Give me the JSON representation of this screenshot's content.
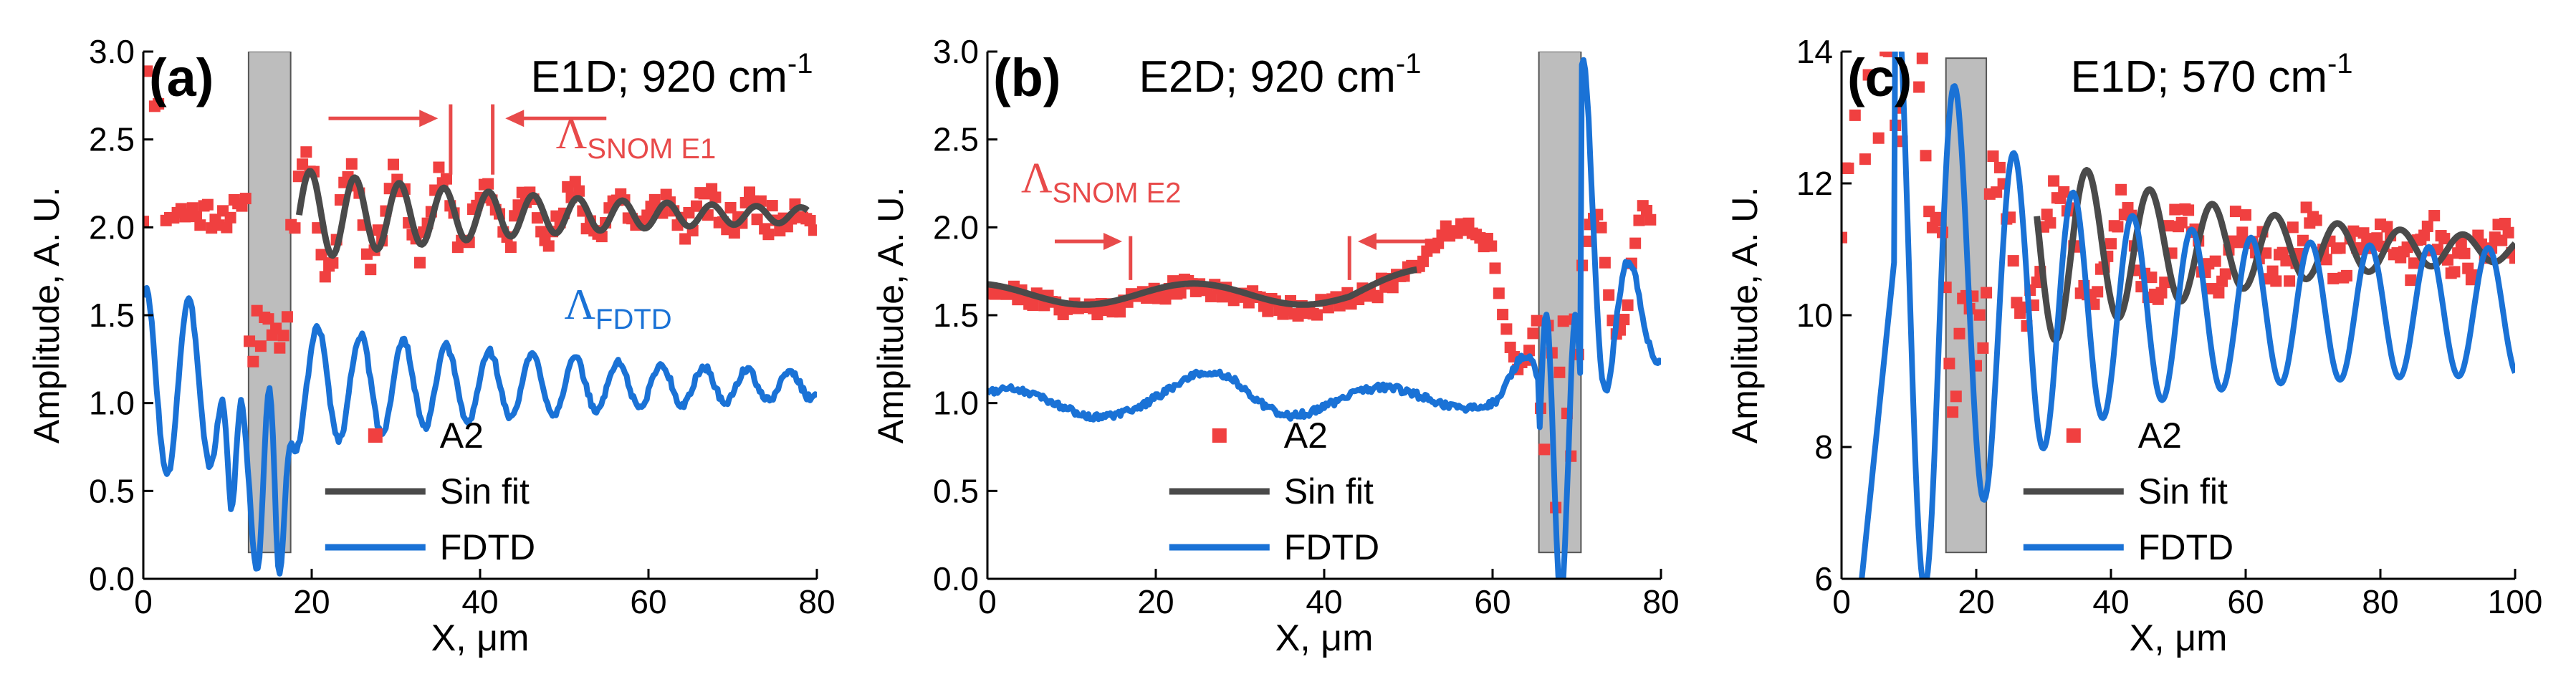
{
  "colors": {
    "exp": "#f04040",
    "fit": "#4a4a4a",
    "fdtd": "#1a72d6",
    "bar": "#bdbdbd",
    "axis": "#000000",
    "annot_red": "#e84a4a",
    "annot_blue": "#1a72d6"
  },
  "chart_data": [
    {
      "type": "line",
      "panel_label": "(a)",
      "title": "E1D; 920 cm",
      "title_sup": "-1",
      "xlabel": "X, μm",
      "ylabel": "Amplitude, A. U.",
      "xlim": [
        0,
        80
      ],
      "ylim": [
        0,
        3
      ],
      "xticks": [
        0,
        20,
        40,
        60,
        80
      ],
      "yticks": [
        0.0,
        0.5,
        1.0,
        1.5,
        2.0,
        2.5,
        3.0
      ],
      "ytick_labels": [
        "0.0",
        "0.5",
        "1.0",
        "1.5",
        "2.0",
        "2.5",
        "3.0"
      ],
      "barrier": {
        "x0": 12.5,
        "x1": 17.5,
        "y0": 0.15,
        "y1": 3.0
      },
      "legend": {
        "placement": "bottom-center",
        "entries": [
          "A2",
          "Sin fit",
          "FDTD"
        ]
      },
      "annotations": [
        {
          "text": "Λ",
          "sub": "SNOM E1",
          "color": "red",
          "x": 49,
          "y": 2.45
        },
        {
          "text": "Λ",
          "sub": "FDTD",
          "color": "blue",
          "x": 50,
          "y": 1.48
        }
      ],
      "markers": [
        {
          "x": 36.5,
          "y0": 2.3,
          "y1": 2.7
        },
        {
          "x": 41.5,
          "y0": 2.3,
          "y1": 2.7
        }
      ],
      "arrows": [
        {
          "x0": 22,
          "x1": 35,
          "y": 2.62
        },
        {
          "x0": 55,
          "x1": 43,
          "y": 2.62
        }
      ],
      "series": [
        {
          "name": "A2",
          "kind": "scatter",
          "model": {
            "type": "decay",
            "start": 0,
            "end": 80,
            "base": 2.08,
            "amp": 0.35,
            "decay": 0.035,
            "period": 5.3,
            "phase": 0,
            "x_from": 18,
            "noise": 0.09,
            "step": 0.45,
            "seed": 11,
            "extra": [
              [
                0.2,
                2.6,
                3.0
              ],
              [
                12.5,
                17.5,
                1.4
              ]
            ]
          }
        },
        {
          "name": "Sin fit",
          "kind": "line",
          "model": {
            "type": "decay",
            "start": 18.5,
            "end": 79,
            "base": 2.07,
            "amp": 0.26,
            "decay": 0.03,
            "period": 5.3,
            "phase": 0,
            "x_from": 18.5,
            "noise": 0,
            "step": 0.2,
            "seed": 1
          }
        },
        {
          "name": "FDTD",
          "kind": "line",
          "model": {
            "type": "decay",
            "start": 0,
            "end": 80,
            "base": 1.1,
            "amp": 0.55,
            "decay": 0.025,
            "period": 5.1,
            "phase": 1.2,
            "x_from": 0,
            "noise": 0.02,
            "step": 0.2,
            "seed": 3,
            "dips": [
              [
                10.5,
                0.4
              ],
              [
                13.5,
                0.05
              ],
              [
                16.2,
                0.02
              ]
            ]
          }
        }
      ]
    },
    {
      "type": "line",
      "panel_label": "(b)",
      "title": "E2D; 920 cm",
      "title_sup": "-1",
      "xlabel": "X, μm",
      "ylabel": "Amplitude, A. U.",
      "xlim": [
        0,
        80
      ],
      "ylim": [
        0,
        3
      ],
      "xticks": [
        0,
        20,
        40,
        60,
        80
      ],
      "yticks": [
        0.0,
        0.5,
        1.0,
        1.5,
        2.0,
        2.5,
        3.0
      ],
      "ytick_labels": [
        "0.0",
        "0.5",
        "1.0",
        "1.5",
        "2.0",
        "2.5",
        "3.0"
      ],
      "barrier": {
        "x0": 65.5,
        "x1": 70.5,
        "y0": 0.15,
        "y1": 3.0
      },
      "legend": {
        "placement": "bottom-center",
        "entries": [
          "A2",
          "Sin fit",
          "FDTD"
        ]
      },
      "annotations": [
        {
          "text": "Λ",
          "sub": "SNOM E2",
          "color": "red",
          "x": 4,
          "y": 2.2
        }
      ],
      "markers": [
        {
          "x": 17,
          "y0": 1.7,
          "y1": 1.95
        },
        {
          "x": 43,
          "y0": 1.7,
          "y1": 1.95
        }
      ],
      "arrows": [
        {
          "x0": 8,
          "x1": 16,
          "y": 1.92
        },
        {
          "x0": 52,
          "x1": 44,
          "y": 1.92
        }
      ],
      "series": [
        {
          "name": "A2",
          "kind": "scatter",
          "model": {
            "type": "b_exp",
            "start": 0,
            "end": 79,
            "noise": 0.05,
            "step": 0.45,
            "seed": 21
          }
        },
        {
          "name": "Sin fit",
          "kind": "line",
          "model": {
            "type": "b_fit",
            "start": 0,
            "end": 51,
            "step": 0.2
          }
        },
        {
          "name": "FDTD",
          "kind": "line",
          "model": {
            "type": "b_fdtd",
            "start": 0,
            "end": 80,
            "noise": 0.02,
            "step": 0.2,
            "seed": 4
          }
        }
      ]
    },
    {
      "type": "line",
      "panel_label": "(c)",
      "title": "E1D; 570 cm",
      "title_sup": "-1",
      "xlabel": "X, μm",
      "ylabel": "Amplitude, A. U.",
      "xlim": [
        0,
        100
      ],
      "ylim": [
        6,
        14
      ],
      "xticks": [
        0,
        20,
        40,
        60,
        80,
        100
      ],
      "yticks": [
        6,
        8,
        10,
        12,
        14
      ],
      "ytick_labels": [
        "6",
        "8",
        "10",
        "12",
        "14"
      ],
      "barrier": {
        "x0": 15.5,
        "x1": 21.5,
        "y0": 6.4,
        "y1": 13.9
      },
      "legend": {
        "placement": "bottom-center",
        "entries": [
          "A2",
          "Sin fit",
          "FDTD"
        ]
      },
      "annotations": [],
      "markers": [],
      "arrows": [],
      "series": [
        {
          "name": "A2",
          "kind": "scatter",
          "model": {
            "type": "decay",
            "start": 0,
            "end": 100,
            "base": 11.0,
            "amp": 1.2,
            "decay": 0.025,
            "period": 9.3,
            "phase": 0.3,
            "x_from": 21,
            "noise": 0.35,
            "step": 0.5,
            "seed": 31,
            "extra": [
              [
                0.5,
                12.5,
                13.8
              ],
              [
                15.5,
                21.5,
                9.3
              ]
            ]
          }
        },
        {
          "name": "Sin fit",
          "kind": "line",
          "model": {
            "type": "decay",
            "start": 29,
            "end": 100,
            "base": 11.0,
            "amp": 1.5,
            "decay": 0.03,
            "period": 9.3,
            "phase": 2.8,
            "x_from": 29,
            "noise": 0,
            "step": 0.2,
            "seed": 1
          }
        },
        {
          "name": "FDTD",
          "kind": "line",
          "model": {
            "type": "c_fdtd",
            "start": 3,
            "end": 100,
            "step": 0.2
          }
        }
      ]
    }
  ]
}
